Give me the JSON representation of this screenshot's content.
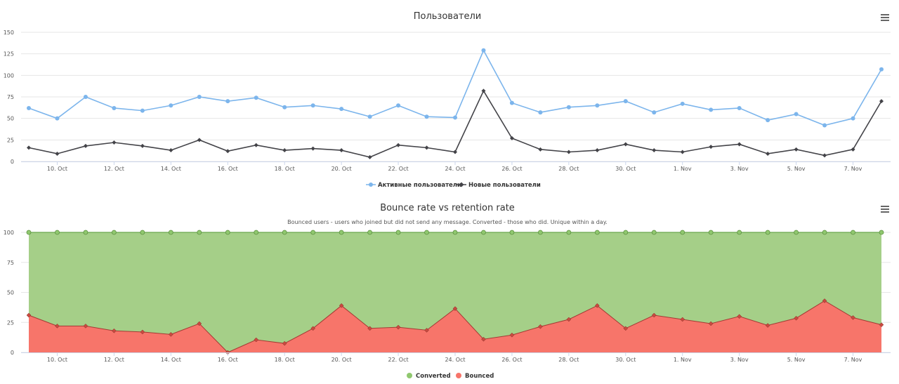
{
  "chart_data": [
    {
      "type": "line",
      "title": "Пользователи",
      "x": [
        "9. Oct",
        "10. Oct",
        "11. Oct",
        "12. Oct",
        "13. Oct",
        "14. Oct",
        "15. Oct",
        "16. Oct",
        "17. Oct",
        "18. Oct",
        "19. Oct",
        "20. Oct",
        "21. Oct",
        "22. Oct",
        "23. Oct",
        "24. Oct",
        "25. Oct",
        "26. Oct",
        "27. Oct",
        "28. Oct",
        "29. Oct",
        "30. Oct",
        "31. Oct",
        "1. Nov",
        "2. Nov",
        "3. Nov",
        "4. Nov",
        "5. Nov",
        "6. Nov",
        "7. Nov",
        "8. Nov"
      ],
      "tick_labels": [
        "10. Oct",
        "12. Oct",
        "14. Oct",
        "16. Oct",
        "18. Oct",
        "20. Oct",
        "22. Oct",
        "24. Oct",
        "26. Oct",
        "28. Oct",
        "30. Oct",
        "1. Nov",
        "3. Nov",
        "5. Nov",
        "7. Nov"
      ],
      "yticks": [
        0,
        25,
        50,
        75,
        100,
        125,
        150
      ],
      "ylim": [
        0,
        150
      ],
      "grid": true,
      "legend_position": "bottom-center",
      "series": [
        {
          "name": "Активные пользователи",
          "color": "#7cb5ec",
          "marker": "circle",
          "values": [
            62,
            50,
            75,
            62,
            59,
            65,
            75,
            70,
            74,
            63,
            65,
            61,
            52,
            65,
            52,
            51,
            129,
            68,
            57,
            63,
            65,
            70,
            57,
            67,
            60,
            62,
            48,
            55,
            42,
            50,
            107
          ]
        },
        {
          "name": "Новые пользователи",
          "color": "#434348",
          "marker": "diamond",
          "values": [
            16,
            9,
            18,
            22,
            18,
            13,
            25,
            12,
            19,
            13,
            15,
            13,
            5,
            19,
            16,
            11,
            82,
            27,
            14,
            11,
            13,
            20,
            13,
            11,
            17,
            20,
            9,
            14,
            7,
            14,
            70
          ]
        }
      ]
    },
    {
      "type": "area",
      "stacked": "percent",
      "title": "Bounce rate vs retention rate",
      "subtitle": "Bounced users - users who joined but did not send any message. Converted - those who did. Unique within a day.",
      "x": [
        "9. Oct",
        "10. Oct",
        "11. Oct",
        "12. Oct",
        "13. Oct",
        "14. Oct",
        "15. Oct",
        "16. Oct",
        "17. Oct",
        "18. Oct",
        "19. Oct",
        "20. Oct",
        "21. Oct",
        "22. Oct",
        "23. Oct",
        "24. Oct",
        "25. Oct",
        "26. Oct",
        "27. Oct",
        "28. Oct",
        "29. Oct",
        "30. Oct",
        "31. Oct",
        "1. Nov",
        "2. Nov",
        "3. Nov",
        "4. Nov",
        "5. Nov",
        "6. Nov",
        "7. Nov",
        "8. Nov"
      ],
      "tick_labels": [
        "10. Oct",
        "12. Oct",
        "14. Oct",
        "16. Oct",
        "18. Oct",
        "20. Oct",
        "22. Oct",
        "24. Oct",
        "26. Oct",
        "28. Oct",
        "30. Oct",
        "1. Nov",
        "3. Nov",
        "5. Nov",
        "7. Nov"
      ],
      "yticks": [
        0,
        25,
        50,
        75,
        100
      ],
      "ylim": [
        0,
        100
      ],
      "grid": true,
      "legend_position": "bottom-center",
      "series": [
        {
          "name": "Converted",
          "color": "#90c86f",
          "marker": "circle",
          "values": [
            69,
            78,
            78,
            82,
            83,
            85,
            76,
            100,
            89.5,
            92.5,
            80,
            61,
            80,
            79,
            81.5,
            63.5,
            89,
            85.5,
            78.5,
            72.5,
            61,
            80,
            69,
            72.5,
            76,
            70,
            77.5,
            71.5,
            57,
            71,
            77
          ]
        },
        {
          "name": "Bounced",
          "color": "#f7756a",
          "marker": "diamond",
          "values": [
            31,
            22,
            22,
            18,
            17,
            15,
            24,
            0,
            10.5,
            7.5,
            20,
            39,
            20,
            21,
            18.5,
            36.5,
            11,
            14.5,
            21.5,
            27.5,
            39,
            20,
            31,
            27.5,
            24,
            30,
            22.5,
            28.5,
            43,
            29,
            23
          ]
        }
      ]
    }
  ]
}
